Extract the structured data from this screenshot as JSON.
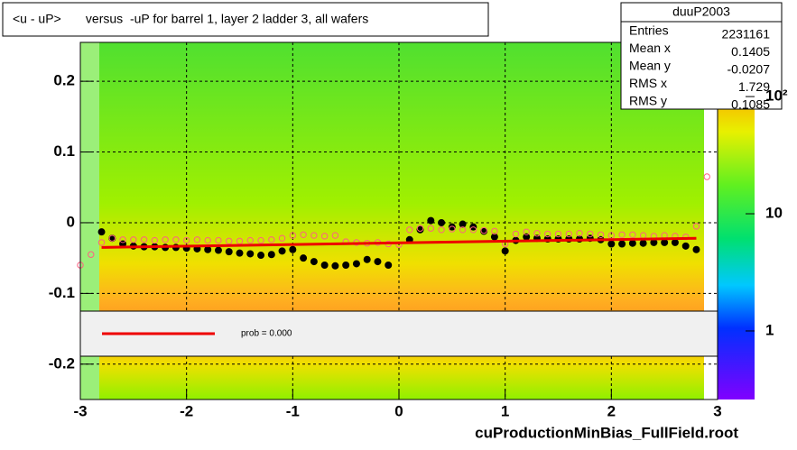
{
  "chart_data": {
    "type": "profile",
    "title": "<u - uP>       versus  -uP for barrel 1, layer 2 ladder 3, all wafers",
    "footer": "cuProductionMinBias_FullField.root",
    "xlim": [
      -3,
      3
    ],
    "ylim": [
      -0.25,
      0.255
    ],
    "xticks": [
      -3,
      -2,
      -1,
      0,
      1,
      2,
      3
    ],
    "yticks": [
      -0.2,
      -0.1,
      0,
      0.1,
      0.2
    ],
    "grid": true,
    "zlim": [
      0.26,
      290
    ],
    "zlog": true,
    "zticks": [
      1,
      10,
      {
        "value": 100,
        "label": "10²"
      }
    ],
    "series": [
      {
        "color": "#000000",
        "marker": "filled-circle",
        "x": [
          -2.8,
          -2.7,
          -2.6,
          -2.5,
          -2.4,
          -2.3,
          -2.2,
          -2.1,
          -2.0,
          -1.9,
          -1.8,
          -1.7,
          -1.6,
          -1.5,
          -1.4,
          -1.3,
          -1.2,
          -1.1,
          -1.0,
          -0.9,
          -0.8,
          -0.7,
          -0.6,
          -0.5,
          -0.4,
          -0.3,
          -0.2,
          -0.1,
          0.1,
          0.2,
          0.3,
          0.4,
          0.5,
          0.6,
          0.7,
          0.8,
          0.9,
          1.0,
          1.1,
          1.2,
          1.3,
          1.4,
          1.5,
          1.6,
          1.7,
          1.8,
          1.9,
          2.0,
          2.1,
          2.2,
          2.3,
          2.4,
          2.5,
          2.6,
          2.7,
          2.8
        ],
        "values": [
          -0.013,
          -0.022,
          -0.03,
          -0.033,
          -0.034,
          -0.034,
          -0.035,
          -0.035,
          -0.036,
          -0.037,
          -0.038,
          -0.039,
          -0.041,
          -0.043,
          -0.044,
          -0.046,
          -0.045,
          -0.04,
          -0.038,
          -0.05,
          -0.055,
          -0.06,
          -0.061,
          -0.06,
          -0.058,
          -0.052,
          -0.055,
          -0.06,
          -0.024,
          -0.01,
          0.003,
          0.0,
          -0.006,
          -0.002,
          -0.006,
          -0.012,
          -0.02,
          -0.04,
          -0.025,
          -0.02,
          -0.022,
          -0.023,
          -0.023,
          -0.023,
          -0.023,
          -0.022,
          -0.024,
          -0.03,
          -0.03,
          -0.029,
          -0.029,
          -0.028,
          -0.028,
          -0.028,
          -0.033,
          -0.038
        ]
      },
      {
        "color": "#ff6080",
        "marker": "open-circle",
        "x": [
          -3.0,
          -2.9,
          -2.8,
          -2.7,
          -2.6,
          -2.5,
          -2.4,
          -2.3,
          -2.2,
          -2.1,
          -2.0,
          -1.9,
          -1.8,
          -1.7,
          -1.6,
          -1.5,
          -1.4,
          -1.3,
          -1.2,
          -1.1,
          -1.0,
          -0.9,
          -0.8,
          -0.7,
          -0.6,
          -0.5,
          -0.4,
          -0.3,
          -0.2,
          -0.1,
          0.0,
          0.1,
          0.2,
          0.3,
          0.4,
          0.5,
          0.6,
          0.7,
          0.8,
          0.9,
          1.0,
          1.1,
          1.2,
          1.3,
          1.4,
          1.5,
          1.6,
          1.7,
          1.8,
          1.9,
          2.0,
          2.1,
          2.2,
          2.3,
          2.4,
          2.5,
          2.6,
          2.7,
          2.8,
          2.9
        ],
        "values": [
          -0.06,
          -0.045,
          -0.028,
          -0.022,
          -0.024,
          -0.024,
          -0.024,
          -0.025,
          -0.024,
          -0.024,
          -0.025,
          -0.024,
          -0.025,
          -0.025,
          -0.026,
          -0.026,
          -0.025,
          -0.025,
          -0.024,
          -0.022,
          -0.018,
          -0.017,
          -0.018,
          -0.019,
          -0.018,
          -0.027,
          -0.028,
          -0.029,
          -0.028,
          -0.03,
          -0.031,
          -0.01,
          -0.008,
          -0.008,
          -0.01,
          -0.009,
          -0.01,
          -0.01,
          -0.011,
          -0.012,
          -0.03,
          -0.016,
          -0.013,
          -0.015,
          -0.016,
          -0.016,
          -0.016,
          -0.015,
          -0.016,
          -0.017,
          -0.018,
          -0.017,
          -0.017,
          -0.018,
          -0.019,
          -0.018,
          -0.019,
          -0.02,
          -0.005,
          0.065
        ]
      },
      {
        "name": "prob = 0.000",
        "color": "#ee0000",
        "marker": "line",
        "x": [
          -2.8,
          2.8
        ],
        "values": [
          -0.035,
          -0.022
        ]
      }
    ],
    "stats": {
      "title": "duuP2003",
      "rows": [
        [
          "Entries",
          2231161
        ],
        [
          "Mean x",
          0.1405
        ],
        [
          "Mean y",
          -0.0207
        ],
        [
          "RMS x",
          1.729
        ],
        [
          "RMS y",
          0.1085
        ]
      ]
    }
  }
}
